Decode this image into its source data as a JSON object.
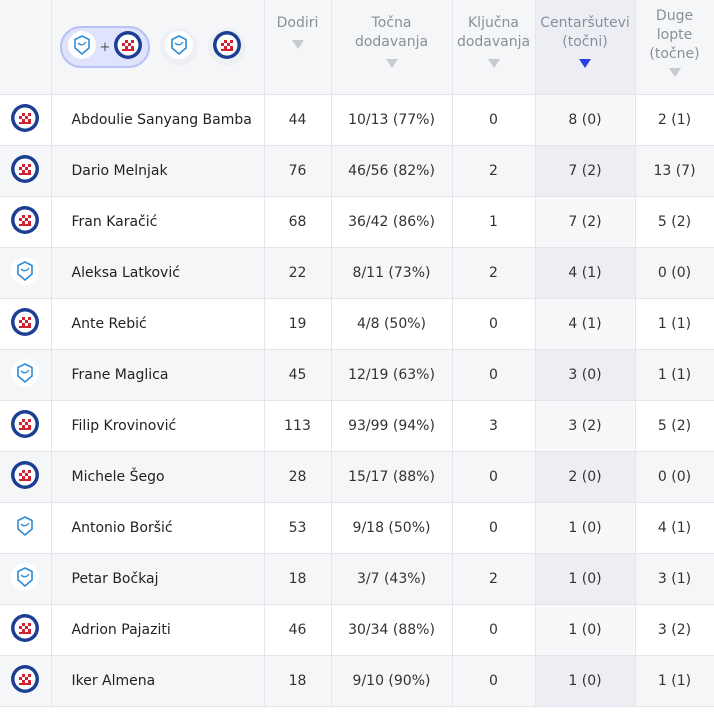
{
  "filters": {
    "both_label": "+",
    "team_icons": [
      "varazdin-crest-icon",
      "hajduk-split-crest-icon"
    ]
  },
  "headers": {
    "touches": "Dodiri",
    "accurate_passes": [
      "Točna",
      "dodavanja"
    ],
    "key_passes": [
      "Ključna",
      "dodavanja"
    ],
    "crosses": [
      "Centaršutevi",
      "(točni)"
    ],
    "long_balls": [
      "Duge",
      "lopte",
      "(točne)"
    ]
  },
  "colors": {
    "sort_active": "#2a3fe8",
    "hajduk_red": "#d42130",
    "hajduk_blue": "#1c3f94",
    "varazdin_blue": "#2f8bd6"
  },
  "rows": [
    {
      "team": "hajduk",
      "name": "Abdoulie Sanyang Bamba",
      "touches": "44",
      "passes": "10/13 (77%)",
      "key": "0",
      "crosses": "8 (0)",
      "long": "2 (1)"
    },
    {
      "team": "hajduk",
      "name": "Dario Melnjak",
      "touches": "76",
      "passes": "46/56 (82%)",
      "key": "2",
      "crosses": "7 (2)",
      "long": "13 (7)"
    },
    {
      "team": "hajduk",
      "name": "Fran Karačić",
      "touches": "68",
      "passes": "36/42 (86%)",
      "key": "1",
      "crosses": "7 (2)",
      "long": "5 (2)"
    },
    {
      "team": "varazdin",
      "name": "Aleksa Latković",
      "touches": "22",
      "passes": "8/11 (73%)",
      "key": "2",
      "crosses": "4 (1)",
      "long": "0 (0)"
    },
    {
      "team": "hajduk",
      "name": "Ante Rebić",
      "touches": "19",
      "passes": "4/8 (50%)",
      "key": "0",
      "crosses": "4 (1)",
      "long": "1 (1)"
    },
    {
      "team": "varazdin",
      "name": "Frane Maglica",
      "touches": "45",
      "passes": "12/19 (63%)",
      "key": "0",
      "crosses": "3 (0)",
      "long": "1 (1)"
    },
    {
      "team": "hajduk",
      "name": "Filip Krovinović",
      "touches": "113",
      "passes": "93/99 (94%)",
      "key": "3",
      "crosses": "3 (2)",
      "long": "5 (2)"
    },
    {
      "team": "hajduk",
      "name": "Michele Šego",
      "touches": "28",
      "passes": "15/17 (88%)",
      "key": "0",
      "crosses": "2 (0)",
      "long": "0 (0)"
    },
    {
      "team": "varazdin",
      "name": "Antonio Boršić",
      "touches": "53",
      "passes": "9/18 (50%)",
      "key": "0",
      "crosses": "1 (0)",
      "long": "4 (1)"
    },
    {
      "team": "varazdin",
      "name": "Petar Bočkaj",
      "touches": "18",
      "passes": "3/7 (43%)",
      "key": "2",
      "crosses": "1 (0)",
      "long": "3 (1)"
    },
    {
      "team": "hajduk",
      "name": "Adrion Pajaziti",
      "touches": "46",
      "passes": "30/34 (88%)",
      "key": "0",
      "crosses": "1 (0)",
      "long": "3 (2)"
    },
    {
      "team": "hajduk",
      "name": "Iker Almena",
      "touches": "18",
      "passes": "9/10 (90%)",
      "key": "0",
      "crosses": "1 (0)",
      "long": "1 (1)"
    }
  ]
}
